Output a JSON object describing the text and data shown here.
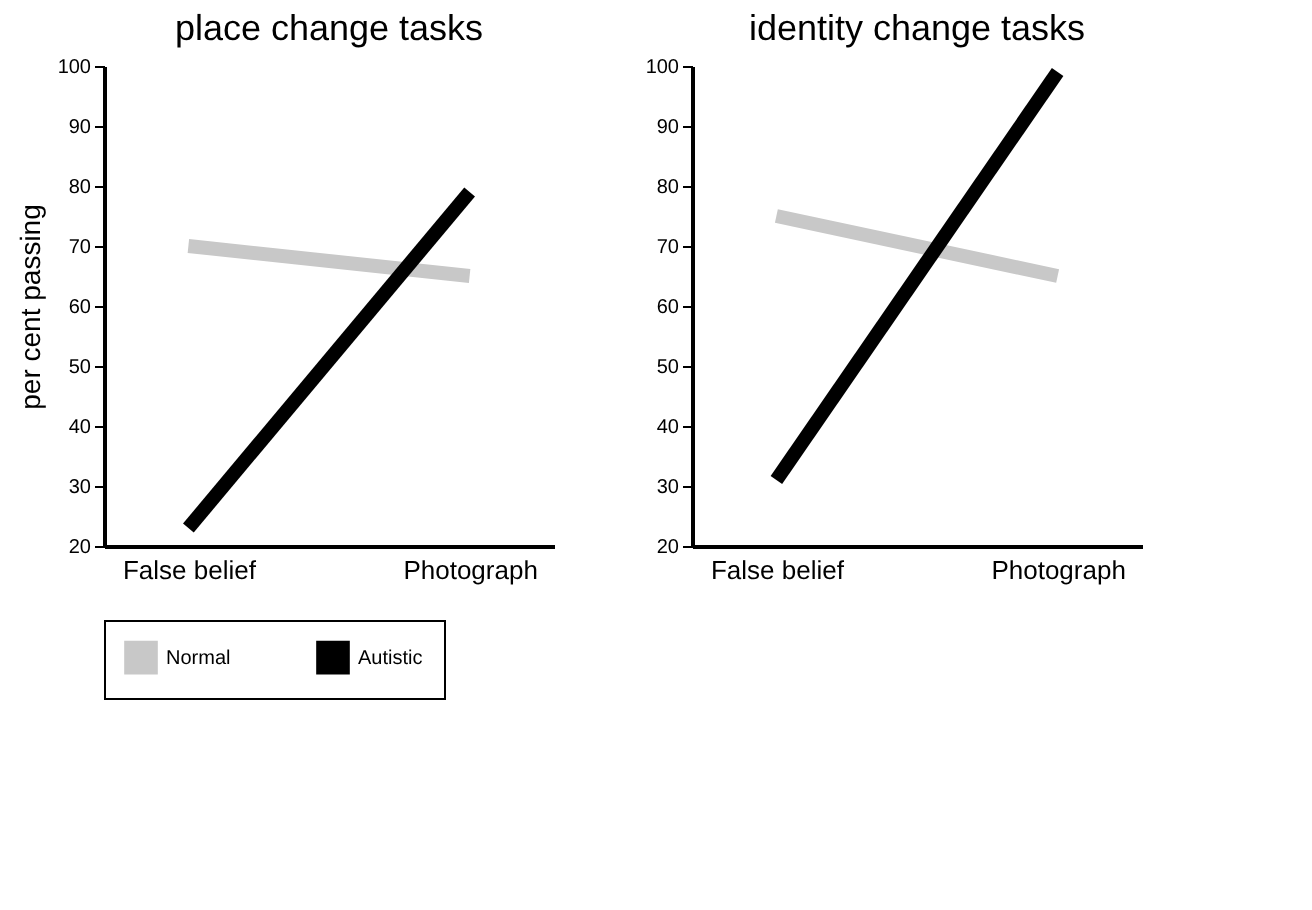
{
  "chart_data": [
    {
      "type": "line",
      "title": "place change tasks",
      "ylabel": "per cent passing",
      "categories": [
        "False belief",
        "Photograph"
      ],
      "ylim": [
        20,
        100
      ],
      "yticks": [
        20,
        30,
        40,
        50,
        60,
        70,
        80,
        90,
        100
      ],
      "grid": false,
      "legend": "bottom",
      "marker": "none",
      "series": [
        {
          "name": "Normal",
          "color": "#c8c8c8",
          "values": [
            70,
            65
          ]
        },
        {
          "name": "Autistic",
          "color": "#000000",
          "values": [
            23,
            79
          ]
        }
      ]
    },
    {
      "type": "line",
      "title": "identity change tasks",
      "categories": [
        "False belief",
        "Photograph"
      ],
      "ylim": [
        20,
        100
      ],
      "yticks": [
        20,
        30,
        40,
        50,
        60,
        70,
        80,
        90,
        100
      ],
      "grid": false,
      "legend": "bottom",
      "marker": "none",
      "series": [
        {
          "name": "Normal",
          "color": "#c8c8c8",
          "values": [
            75,
            65
          ]
        },
        {
          "name": "Autistic",
          "color": "#000000",
          "values": [
            31,
            99
          ]
        }
      ]
    }
  ]
}
